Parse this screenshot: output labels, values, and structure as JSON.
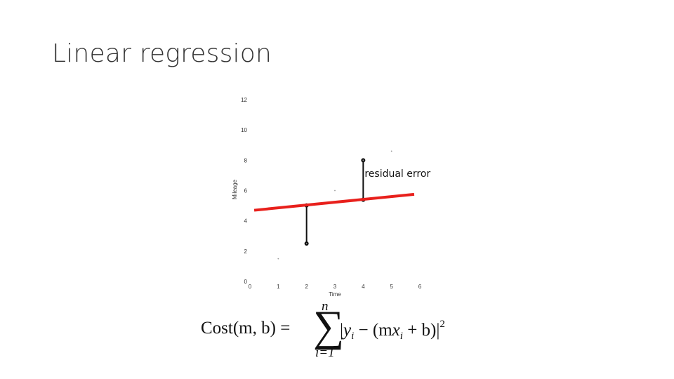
{
  "slide": {
    "title": "Linear regression"
  },
  "chart_data": {
    "type": "scatter",
    "xlabel": "Time",
    "ylabel": "Mileage",
    "xlim": [
      0,
      6
    ],
    "ylim": [
      0,
      12
    ],
    "x_ticks": [
      "0",
      "1",
      "2",
      "3",
      "4",
      "5",
      "6"
    ],
    "y_ticks": [
      "0",
      "2",
      "4",
      "6",
      "8",
      "10",
      "12"
    ],
    "grid": false,
    "points": [
      {
        "x": 1,
        "y": 1.5
      },
      {
        "x": 2,
        "y": 2.5
      },
      {
        "x": 3,
        "y": 6
      },
      {
        "x": 4,
        "y": 8
      },
      {
        "x": 5,
        "y": 8.6
      }
    ],
    "regression_line": {
      "x": [
        0.15,
        5.8
      ],
      "y": [
        4.7,
        5.75
      ],
      "color": "#e8201c"
    },
    "residuals": [
      {
        "x": 2,
        "y_point": 2.5,
        "y_line": 5.02
      },
      {
        "x": 4,
        "y_point": 8,
        "y_line": 5.39
      }
    ],
    "annotation": {
      "text": "residual error",
      "x": 4.05,
      "y": 6.9
    }
  },
  "formula": {
    "lhs": "Cost(m, b) =",
    "sum_upper": "n",
    "sigma": "∑",
    "sum_lower": "i=1",
    "abs_open": "|",
    "y": "y",
    "sub_i_1": "i",
    "mid": " − (m",
    "x": "x",
    "sub_i_2": "i",
    "tail": " + b)|",
    "exponent": "2"
  }
}
